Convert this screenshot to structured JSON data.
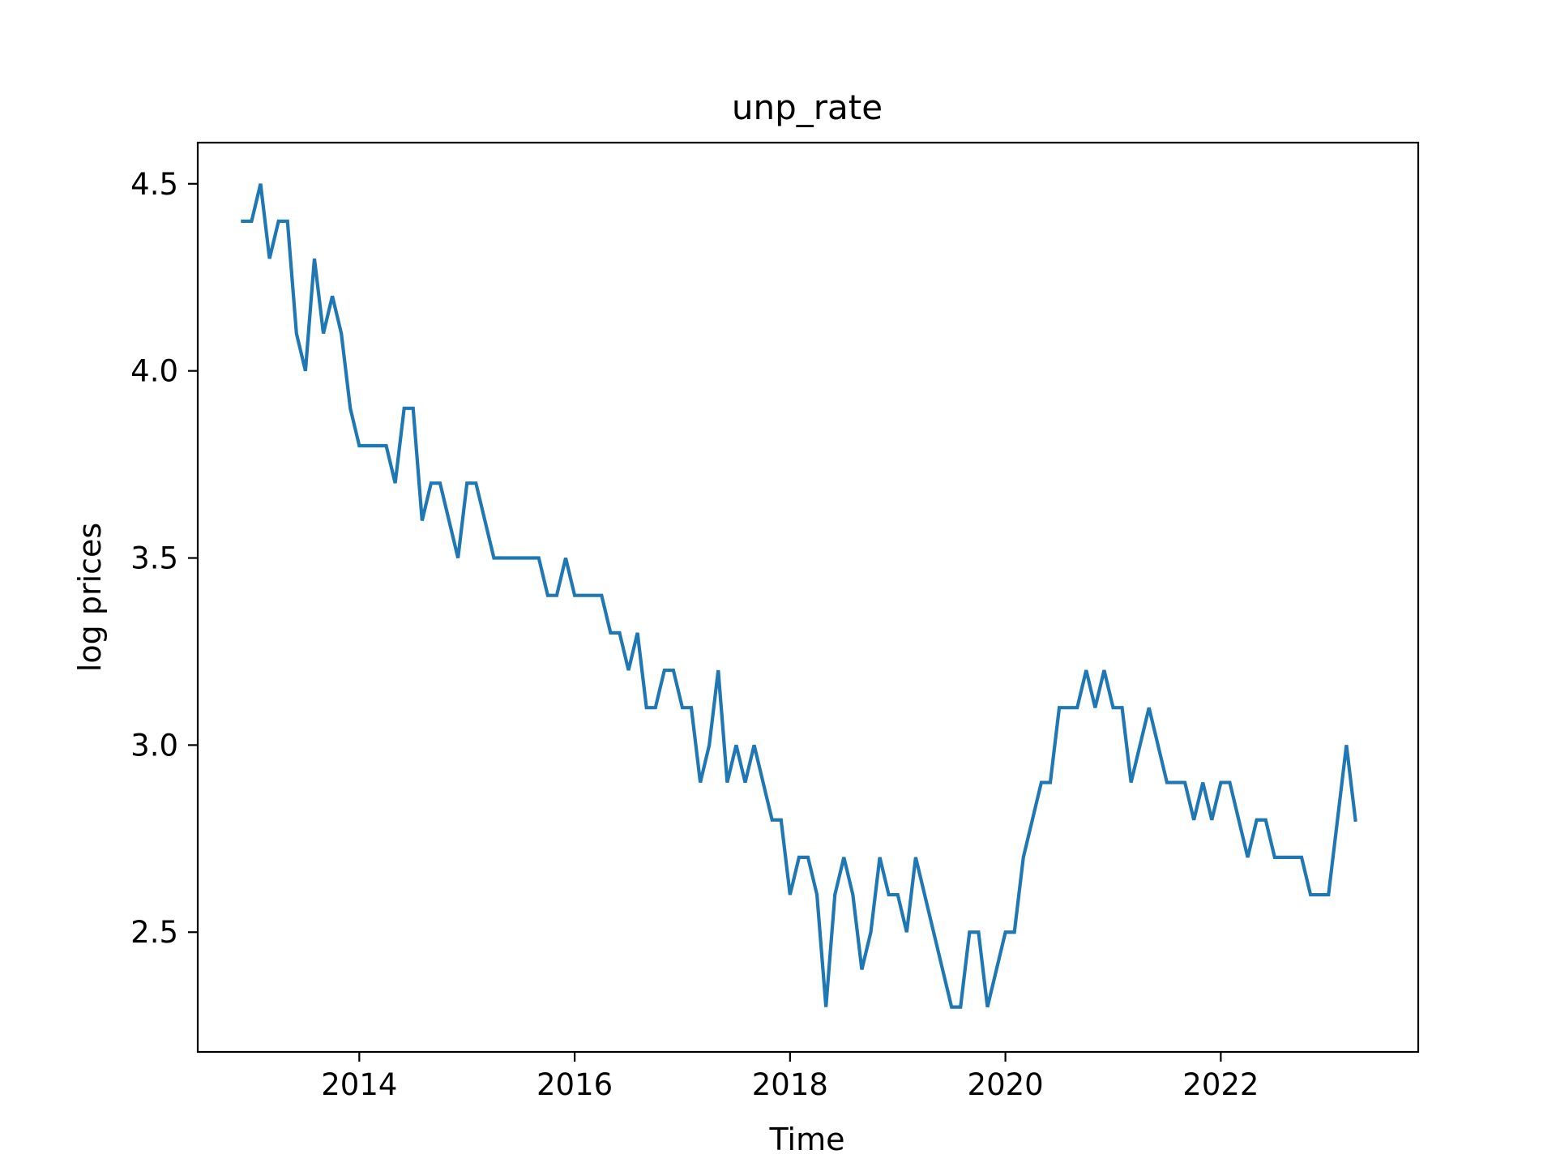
{
  "chart_data": {
    "type": "line",
    "title": "unp_rate",
    "xlabel": "Time",
    "ylabel": "log prices",
    "x_ticks": [
      "2014",
      "2016",
      "2018",
      "2020",
      "2022"
    ],
    "y_ticks": [
      "2.5",
      "3.0",
      "3.5",
      "4.0",
      "4.5"
    ],
    "xlim": [
      "2012-07",
      "2023-11"
    ],
    "ylim": [
      2.18,
      4.61
    ],
    "grid": false,
    "legend": "none",
    "series": [
      {
        "color": "#1f77b4",
        "points": [
          [
            "2012-12",
            4.4
          ],
          [
            "2013-01",
            4.4
          ],
          [
            "2013-02",
            4.5
          ],
          [
            "2013-03",
            4.3
          ],
          [
            "2013-04",
            4.4
          ],
          [
            "2013-05",
            4.4
          ],
          [
            "2013-06",
            4.1
          ],
          [
            "2013-07",
            4.0
          ],
          [
            "2013-08",
            4.3
          ],
          [
            "2013-09",
            4.1
          ],
          [
            "2013-10",
            4.2
          ],
          [
            "2013-11",
            4.1
          ],
          [
            "2013-12",
            3.9
          ],
          [
            "2014-01",
            3.8
          ],
          [
            "2014-02",
            3.8
          ],
          [
            "2014-03",
            3.8
          ],
          [
            "2014-04",
            3.8
          ],
          [
            "2014-05",
            3.7
          ],
          [
            "2014-06",
            3.9
          ],
          [
            "2014-07",
            3.9
          ],
          [
            "2014-08",
            3.6
          ],
          [
            "2014-09",
            3.7
          ],
          [
            "2014-10",
            3.7
          ],
          [
            "2014-11",
            3.6
          ],
          [
            "2014-12",
            3.5
          ],
          [
            "2015-01",
            3.7
          ],
          [
            "2015-02",
            3.7
          ],
          [
            "2015-03",
            3.6
          ],
          [
            "2015-04",
            3.5
          ],
          [
            "2015-05",
            3.5
          ],
          [
            "2015-06",
            3.5
          ],
          [
            "2015-07",
            3.5
          ],
          [
            "2015-08",
            3.5
          ],
          [
            "2015-09",
            3.5
          ],
          [
            "2015-10",
            3.4
          ],
          [
            "2015-11",
            3.4
          ],
          [
            "2015-12",
            3.5
          ],
          [
            "2016-01",
            3.4
          ],
          [
            "2016-02",
            3.4
          ],
          [
            "2016-03",
            3.4
          ],
          [
            "2016-04",
            3.4
          ],
          [
            "2016-05",
            3.3
          ],
          [
            "2016-06",
            3.3
          ],
          [
            "2016-07",
            3.2
          ],
          [
            "2016-08",
            3.3
          ],
          [
            "2016-09",
            3.1
          ],
          [
            "2016-10",
            3.1
          ],
          [
            "2016-11",
            3.2
          ],
          [
            "2016-12",
            3.2
          ],
          [
            "2017-01",
            3.1
          ],
          [
            "2017-02",
            3.1
          ],
          [
            "2017-03",
            2.9
          ],
          [
            "2017-04",
            3.0
          ],
          [
            "2017-05",
            3.2
          ],
          [
            "2017-06",
            2.9
          ],
          [
            "2017-07",
            3.0
          ],
          [
            "2017-08",
            2.9
          ],
          [
            "2017-09",
            3.0
          ],
          [
            "2017-10",
            2.9
          ],
          [
            "2017-11",
            2.8
          ],
          [
            "2017-12",
            2.8
          ],
          [
            "2018-01",
            2.6
          ],
          [
            "2018-02",
            2.7
          ],
          [
            "2018-03",
            2.7
          ],
          [
            "2018-04",
            2.6
          ],
          [
            "2018-05",
            2.3
          ],
          [
            "2018-06",
            2.6
          ],
          [
            "2018-07",
            2.7
          ],
          [
            "2018-08",
            2.6
          ],
          [
            "2018-09",
            2.4
          ],
          [
            "2018-10",
            2.5
          ],
          [
            "2018-11",
            2.7
          ],
          [
            "2018-12",
            2.6
          ],
          [
            "2019-01",
            2.6
          ],
          [
            "2019-02",
            2.5
          ],
          [
            "2019-03",
            2.7
          ],
          [
            "2019-07",
            2.3
          ],
          [
            "2019-08",
            2.3
          ],
          [
            "2019-09",
            2.5
          ],
          [
            "2019-10",
            2.5
          ],
          [
            "2019-11",
            2.3
          ],
          [
            "2020-01",
            2.5
          ],
          [
            "2020-02",
            2.5
          ],
          [
            "2020-03",
            2.7
          ],
          [
            "2020-05",
            2.9
          ],
          [
            "2020-06",
            2.9
          ],
          [
            "2020-07",
            3.1
          ],
          [
            "2020-08",
            3.1
          ],
          [
            "2020-09",
            3.1
          ],
          [
            "2020-10",
            3.2
          ],
          [
            "2020-11",
            3.1
          ],
          [
            "2020-12",
            3.2
          ],
          [
            "2021-01",
            3.1
          ],
          [
            "2021-02",
            3.1
          ],
          [
            "2021-03",
            2.9
          ],
          [
            "2021-05",
            3.1
          ],
          [
            "2021-07",
            2.9
          ],
          [
            "2021-08",
            2.9
          ],
          [
            "2021-09",
            2.9
          ],
          [
            "2021-10",
            2.8
          ],
          [
            "2021-11",
            2.9
          ],
          [
            "2021-12",
            2.8
          ],
          [
            "2022-01",
            2.9
          ],
          [
            "2022-02",
            2.9
          ],
          [
            "2022-03",
            2.8
          ],
          [
            "2022-04",
            2.7
          ],
          [
            "2022-05",
            2.8
          ],
          [
            "2022-06",
            2.8
          ],
          [
            "2022-07",
            2.7
          ],
          [
            "2022-08",
            2.7
          ],
          [
            "2022-09",
            2.7
          ],
          [
            "2022-10",
            2.7
          ],
          [
            "2022-11",
            2.6
          ],
          [
            "2022-12",
            2.6
          ],
          [
            "2023-01",
            2.6
          ],
          [
            "2023-02",
            2.8
          ],
          [
            "2023-03",
            3.0
          ],
          [
            "2023-04",
            2.8
          ]
        ]
      }
    ]
  }
}
